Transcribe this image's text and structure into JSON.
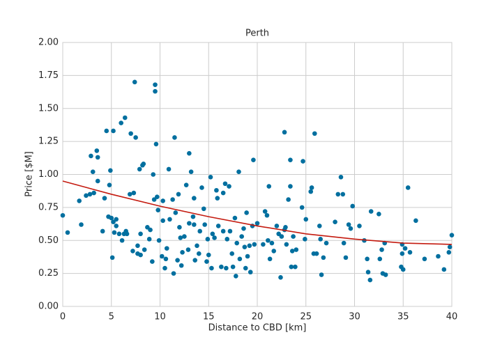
{
  "chart_data": {
    "type": "scatter",
    "title": "Perth",
    "x_label": "Distance to CBD [km]",
    "y_label": "Price [$M]",
    "xlim": [
      0,
      40
    ],
    "ylim": [
      0,
      2
    ],
    "xticks": [
      0,
      5,
      10,
      15,
      20,
      25,
      30,
      35,
      40
    ],
    "yticks": [
      {
        "value": 0,
        "label": "0.00"
      },
      {
        "value": 0.25,
        "label": "0.25"
      },
      {
        "value": 0.5,
        "label": "0.50"
      },
      {
        "value": 0.75,
        "label": "0.75"
      },
      {
        "value": 1,
        "label": "1.00"
      },
      {
        "value": 1.25,
        "label": "1.25"
      },
      {
        "value": 1.5,
        "label": "1.50"
      },
      {
        "value": 1.75,
        "label": "1.75"
      },
      {
        "value": 2,
        "label": "2.00"
      }
    ],
    "grid": true,
    "points": {
      "color": "#006f9f",
      "x": [
        0,
        0.5,
        1.7,
        1.9,
        2.4,
        2.8,
        2.9,
        3.1,
        3.2,
        3.5,
        3.6,
        3.6,
        4.1,
        4.3,
        4.5,
        4.7,
        4.8,
        4.9,
        5.0,
        5.1,
        5.2,
        5.2,
        5.3,
        5.5,
        5.5,
        5.8,
        6.0,
        6.1,
        6.3,
        6.4,
        6.5,
        6.6,
        6.9,
        7.0,
        7.2,
        7.3,
        7.4,
        7.5,
        7.7,
        7.7,
        7.9,
        8.0,
        8.0,
        8.2,
        8.3,
        8.4,
        8.7,
        8.9,
        9.0,
        9.2,
        9.3,
        9.4,
        9.5,
        9.5,
        9.6,
        9.7,
        9.8,
        9.9,
        10.2,
        10.3,
        10.3,
        10.5,
        10.6,
        10.7,
        10.9,
        11.0,
        11.3,
        11.4,
        11.5,
        11.6,
        11.8,
        11.9,
        12.0,
        12.1,
        12.2,
        12.3,
        12.5,
        12.7,
        12.9,
        13.0,
        13.0,
        13.2,
        13.4,
        13.5,
        13.6,
        13.8,
        14.0,
        14.1,
        14.3,
        14.5,
        14.6,
        14.8,
        14.9,
        15.0,
        15.2,
        15.3,
        15.4,
        15.6,
        15.8,
        15.9,
        16.0,
        16.3,
        16.5,
        16.5,
        16.7,
        16.8,
        16.9,
        17.1,
        17.2,
        17.4,
        17.5,
        17.7,
        17.8,
        17.9,
        18.1,
        18.2,
        18.4,
        18.6,
        18.7,
        18.8,
        18.9,
        19.2,
        19.3,
        19.5,
        19.6,
        19.7,
        20.0,
        20.6,
        20.8,
        21.0,
        21.1,
        21.2,
        21.3,
        21.5,
        21.7,
        22.0,
        22.2,
        22.4,
        22.5,
        22.8,
        22.9,
        23.0,
        23.2,
        23.4,
        23.4,
        23.5,
        23.6,
        23.7,
        23.9,
        24.0,
        24.6,
        24.7,
        24.9,
        25.0,
        25.5,
        25.6,
        25.8,
        25.9,
        26.1,
        26.4,
        26.5,
        26.6,
        26.8,
        27.1,
        28.0,
        28.3,
        28.6,
        28.8,
        28.9,
        29.1,
        29.4,
        29.6,
        29.8,
        30.5,
        31.0,
        31.3,
        31.4,
        31.6,
        31.7,
        32.5,
        32.6,
        32.8,
        32.9,
        33.1,
        33.2,
        34.8,
        34.9,
        35.0,
        35.2,
        35.5,
        35.7,
        36.3,
        37.2,
        38.6,
        39.2,
        39.7,
        39.8,
        40.0,
        34.9,
        22.8,
        19.0,
        13.5
      ],
      "y": [
        0.69,
        0.56,
        0.8,
        0.62,
        0.84,
        0.85,
        1.14,
        1.02,
        0.86,
        1.18,
        1.13,
        0.95,
        0.57,
        0.82,
        1.33,
        0.68,
        0.92,
        1.03,
        0.67,
        0.37,
        0.64,
        1.33,
        0.56,
        0.61,
        0.66,
        0.55,
        1.39,
        0.5,
        0.55,
        1.43,
        0.57,
        0.55,
        0.85,
        1.31,
        0.42,
        0.86,
        1.7,
        1.28,
        0.46,
        0.4,
        1.04,
        0.39,
        0.55,
        1.07,
        1.08,
        0.43,
        0.6,
        0.51,
        0.58,
        0.34,
        1.0,
        0.81,
        1.68,
        1.63,
        1.23,
        0.83,
        0.73,
        0.5,
        0.38,
        0.65,
        0.8,
        0.29,
        0.36,
        0.44,
        1.04,
        0.66,
        0.81,
        0.25,
        1.28,
        0.71,
        0.35,
        0.85,
        0.6,
        0.52,
        0.31,
        0.41,
        0.53,
        0.92,
        0.43,
        1.16,
        0.63,
        1.02,
        0.68,
        0.82,
        0.35,
        0.46,
        0.4,
        0.57,
        0.9,
        0.74,
        0.62,
        0.34,
        0.51,
        0.39,
        0.98,
        0.29,
        0.55,
        0.52,
        0.88,
        0.82,
        0.61,
        0.3,
        0.57,
        0.86,
        0.93,
        0.29,
        0.51,
        0.91,
        0.57,
        0.4,
        0.3,
        0.67,
        0.23,
        0.48,
        1.02,
        0.36,
        0.53,
        0.59,
        0.45,
        0.29,
        0.71,
        0.46,
        0.26,
        0.61,
        1.11,
        0.47,
        0.63,
        0.47,
        0.72,
        0.69,
        0.5,
        0.91,
        0.36,
        0.48,
        0.42,
        0.61,
        0.55,
        0.22,
        0.53,
        1.32,
        0.6,
        0.47,
        0.81,
        0.91,
        1.11,
        0.3,
        0.42,
        0.53,
        0.3,
        0.43,
        0.75,
        1.1,
        0.51,
        0.66,
        0.87,
        0.9,
        0.4,
        1.31,
        0.4,
        0.61,
        0.51,
        0.24,
        0.37,
        0.48,
        0.64,
        0.85,
        0.98,
        0.85,
        0.48,
        0.37,
        0.62,
        0.59,
        0.76,
        0.61,
        0.5,
        0.36,
        0.26,
        0.2,
        0.72,
        0.7,
        0.36,
        0.43,
        0.25,
        0.48,
        0.24,
        0.3,
        0.47,
        0.28,
        0.44,
        0.9,
        0.41,
        0.65,
        0.36,
        0.38,
        0.28,
        0.41,
        0.45,
        0.54,
        0.4,
        0.58,
        0.38,
        0.62
      ]
    },
    "fit": {
      "color": "#c41a0f",
      "x": [
        0,
        5,
        10,
        15,
        20,
        25,
        30,
        35,
        40
      ],
      "y": [
        0.95,
        0.85,
        0.76,
        0.68,
        0.61,
        0.55,
        0.51,
        0.48,
        0.47
      ]
    }
  }
}
